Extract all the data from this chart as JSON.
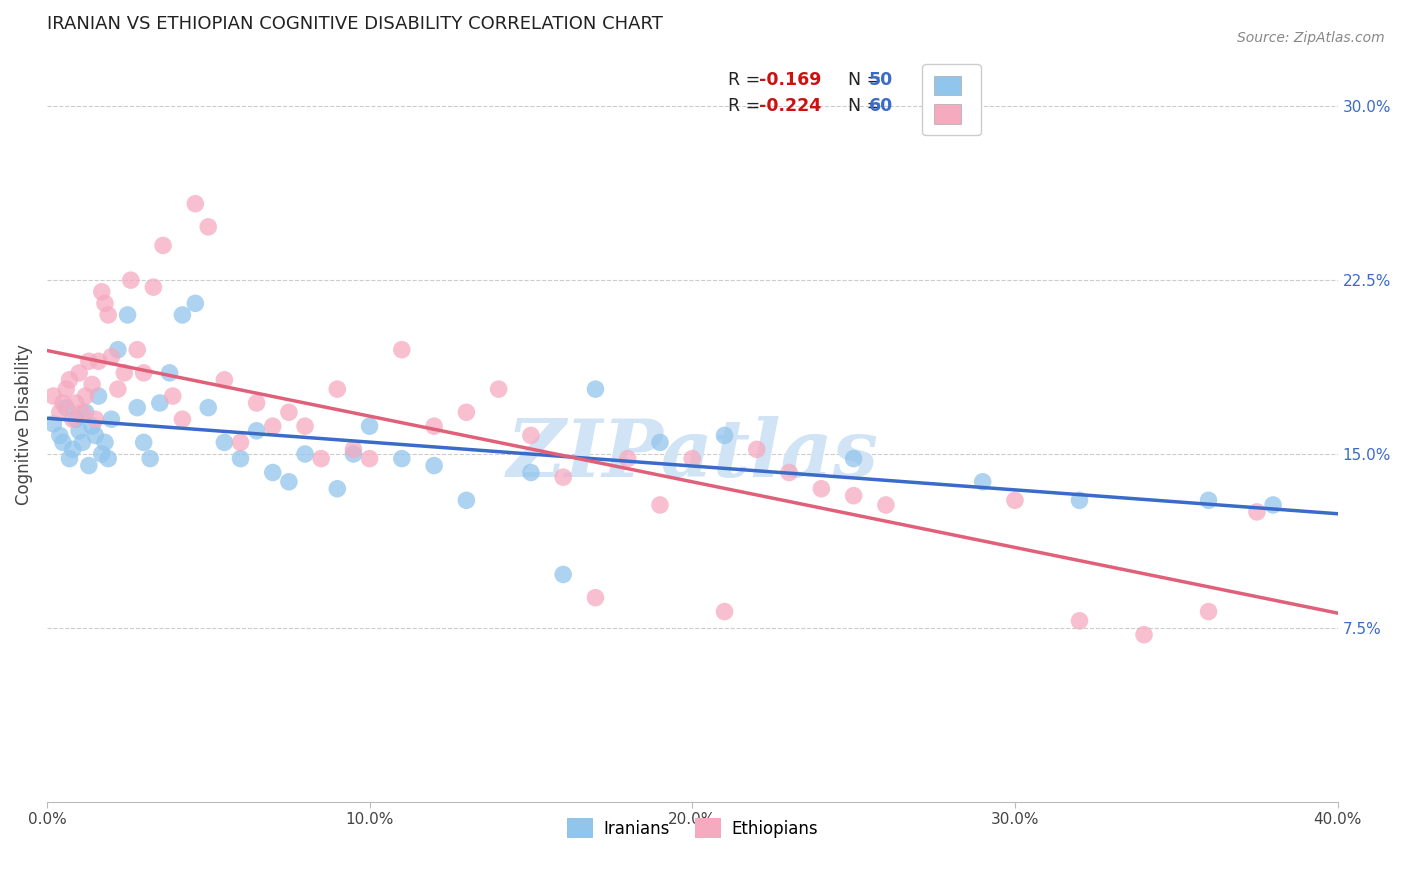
{
  "title": "IRANIAN VS ETHIOPIAN COGNITIVE DISABILITY CORRELATION CHART",
  "source": "Source: ZipAtlas.com",
  "ylabel": "Cognitive Disability",
  "xlim": [
    0.0,
    0.4
  ],
  "ylim": [
    0.0,
    0.325
  ],
  "xtick_labels": [
    "0.0%",
    "10.0%",
    "20.0%",
    "30.0%",
    "40.0%"
  ],
  "xtick_vals": [
    0.0,
    0.1,
    0.2,
    0.3,
    0.4
  ],
  "ytick_labels_right": [
    "7.5%",
    "15.0%",
    "22.5%",
    "30.0%"
  ],
  "ytick_vals_right": [
    0.075,
    0.15,
    0.225,
    0.3
  ],
  "iranian_color": "#92C5EC",
  "ethiopian_color": "#F5AABF",
  "iranian_line_color": "#3B6BC9",
  "ethiopian_line_color": "#E0607A",
  "watermark_color": "#D0E4F5",
  "R_iranian": -0.169,
  "N_iranian": 50,
  "R_ethiopian": -0.224,
  "N_ethiopian": 60,
  "legend_label_iranian": "Iranians",
  "legend_label_ethiopian": "Ethiopians",
  "background_color": "#FFFFFF",
  "grid_color": "#CCCCCC",
  "iranian_x": [
    0.002,
    0.004,
    0.005,
    0.006,
    0.007,
    0.008,
    0.009,
    0.01,
    0.011,
    0.012,
    0.013,
    0.014,
    0.015,
    0.016,
    0.017,
    0.018,
    0.019,
    0.02,
    0.022,
    0.025,
    0.028,
    0.03,
    0.032,
    0.035,
    0.038,
    0.042,
    0.046,
    0.05,
    0.055,
    0.06,
    0.065,
    0.07,
    0.075,
    0.08,
    0.09,
    0.095,
    0.1,
    0.11,
    0.12,
    0.13,
    0.15,
    0.16,
    0.17,
    0.19,
    0.21,
    0.25,
    0.29,
    0.32,
    0.36,
    0.38
  ],
  "iranian_y": [
    0.163,
    0.158,
    0.155,
    0.17,
    0.148,
    0.152,
    0.165,
    0.16,
    0.155,
    0.168,
    0.145,
    0.162,
    0.158,
    0.175,
    0.15,
    0.155,
    0.148,
    0.165,
    0.195,
    0.21,
    0.17,
    0.155,
    0.148,
    0.172,
    0.185,
    0.21,
    0.215,
    0.17,
    0.155,
    0.148,
    0.16,
    0.142,
    0.138,
    0.15,
    0.135,
    0.15,
    0.162,
    0.148,
    0.145,
    0.13,
    0.142,
    0.098,
    0.178,
    0.155,
    0.158,
    0.148,
    0.138,
    0.13,
    0.13,
    0.128
  ],
  "ethiopian_x": [
    0.002,
    0.004,
    0.005,
    0.006,
    0.007,
    0.008,
    0.009,
    0.01,
    0.011,
    0.012,
    0.013,
    0.014,
    0.015,
    0.016,
    0.017,
    0.018,
    0.019,
    0.02,
    0.022,
    0.024,
    0.026,
    0.028,
    0.03,
    0.033,
    0.036,
    0.039,
    0.042,
    0.046,
    0.05,
    0.055,
    0.06,
    0.065,
    0.07,
    0.075,
    0.08,
    0.085,
    0.09,
    0.095,
    0.1,
    0.11,
    0.12,
    0.13,
    0.14,
    0.15,
    0.16,
    0.17,
    0.18,
    0.19,
    0.2,
    0.21,
    0.22,
    0.23,
    0.24,
    0.25,
    0.26,
    0.3,
    0.32,
    0.34,
    0.36,
    0.375
  ],
  "ethiopian_y": [
    0.175,
    0.168,
    0.172,
    0.178,
    0.182,
    0.165,
    0.172,
    0.185,
    0.168,
    0.175,
    0.19,
    0.18,
    0.165,
    0.19,
    0.22,
    0.215,
    0.21,
    0.192,
    0.178,
    0.185,
    0.225,
    0.195,
    0.185,
    0.222,
    0.24,
    0.175,
    0.165,
    0.258,
    0.248,
    0.182,
    0.155,
    0.172,
    0.162,
    0.168,
    0.162,
    0.148,
    0.178,
    0.152,
    0.148,
    0.195,
    0.162,
    0.168,
    0.178,
    0.158,
    0.14,
    0.088,
    0.148,
    0.128,
    0.148,
    0.082,
    0.152,
    0.142,
    0.135,
    0.132,
    0.128,
    0.13,
    0.078,
    0.072,
    0.082,
    0.125
  ]
}
